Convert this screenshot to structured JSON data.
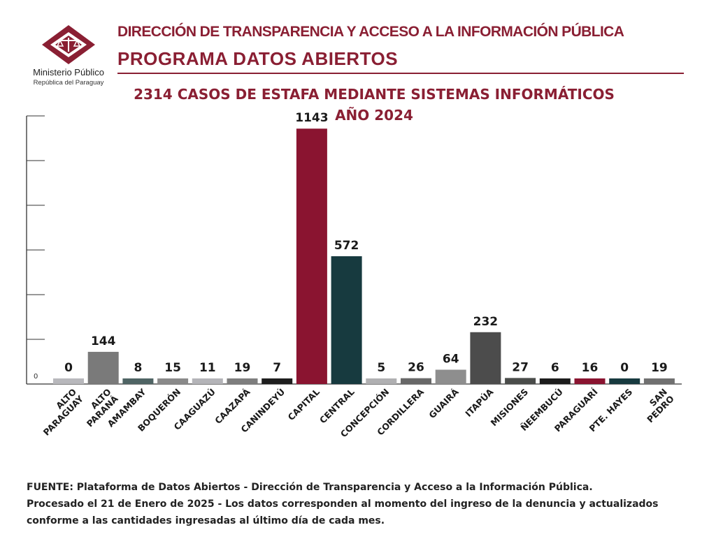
{
  "header": {
    "org_line": "DIRECCIÓN DE TRANSPARENCIA Y ACCESO A LA INFORMACIÓN PÚBLICA",
    "program_line": "PROGRAMA  DATOS ABIERTOS"
  },
  "logo": {
    "name": "Ministerio Público",
    "subtitle": "República del Paraguay",
    "icon": "justice-scales-icon"
  },
  "colors": {
    "brand": "#8a1f33",
    "axis": "#333333"
  },
  "footer": {
    "line1": "FUENTE: Plataforma de Datos Abiertos - Dirección de Transparencia y Acceso a la Información Pública.",
    "line2": "Procesado el 21 de Enero de 2025 - Los datos corresponden al momento del ingreso de la denuncia y actualizados",
    "line3": "conforme a las cantidades ingresadas al último día de cada mes."
  },
  "chart_data": {
    "type": "bar",
    "title": "2314 CASOS DE ESTAFA MEDIANTE SISTEMAS INFORMÁTICOS",
    "subtitle": "AÑO 2024",
    "xlabel": "",
    "ylabel": "",
    "y_tick_labels": [
      "0"
    ],
    "ylim": [
      0,
      1200
    ],
    "grid": false,
    "legend": "none",
    "categories": [
      "ALTO PARAGUAY",
      "ALTO PARANÁ",
      "AMAMBAY",
      "BOQUERÓN",
      "CAAGUAZÚ",
      "CAAZAPÁ",
      "CANINDEYÚ",
      "CAPITAL",
      "CENTRAL",
      "CONCEPCIÓN",
      "CORDILLERA",
      "GUAIRÁ",
      "ITAPÚA",
      "MISIONES",
      "ÑEEMBUCÚ",
      "PARAGUARÍ",
      "PTE. HAYES",
      "SAN PEDRO"
    ],
    "category_lines": [
      [
        "ALTO",
        "PARAGUAY"
      ],
      [
        "ALTO",
        "PARANÁ"
      ],
      [
        "AMAMBAY"
      ],
      [
        "BOQUERÓN"
      ],
      [
        "CAAGUAZÚ"
      ],
      [
        "CAAZAPÁ"
      ],
      [
        "CANINDEYÚ"
      ],
      [
        "CAPITAL"
      ],
      [
        "CENTRAL"
      ],
      [
        "CONCEPCIÓN"
      ],
      [
        "CORDILLERA"
      ],
      [
        "GUAIRÁ"
      ],
      [
        "ITAPÚA"
      ],
      [
        "MISIONES"
      ],
      [
        "ÑEEMBUCÚ"
      ],
      [
        "PARAGUARÍ"
      ],
      [
        "PTE. HAYES"
      ],
      [
        "SAN",
        "PEDRO"
      ]
    ],
    "values": [
      0,
      144,
      8,
      15,
      11,
      19,
      7,
      1143,
      572,
      5,
      26,
      64,
      232,
      27,
      6,
      16,
      0,
      19
    ],
    "data_labels": [
      "0",
      "144",
      "8",
      "15",
      "11",
      "19",
      "7",
      "1143",
      "572",
      "5",
      "26",
      "64",
      "232",
      "27",
      "6",
      "16",
      "0",
      "19"
    ],
    "colors": [
      "#b8b8bc",
      "#7a7a7a",
      "#4f6464",
      "#8a8a8a",
      "#b4b4b8",
      "#7e7e7e",
      "#1e1e1e",
      "#8a1430",
      "#173a3f",
      "#b0b0b2",
      "#686868",
      "#8e8e8e",
      "#4c4c4c",
      "#4a4c4a",
      "#1c1c1c",
      "#8a1430",
      "#173a3f",
      "#707070"
    ]
  }
}
